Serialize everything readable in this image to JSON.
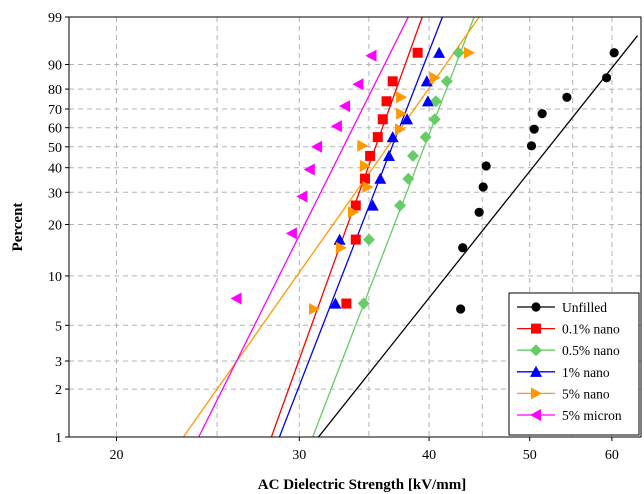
{
  "chart_data": {
    "type": "scatter",
    "title": "",
    "xlabel": "AC Dielectric Strength [kV/mm]",
    "ylabel": "Percent",
    "x_scale": "log",
    "y_scale": "weibull",
    "xlim": [
      18,
      64
    ],
    "ylim": [
      1,
      99
    ],
    "x_ticks": [
      20,
      30,
      40,
      50,
      60
    ],
    "y_ticks": [
      1,
      2,
      3,
      5,
      10,
      20,
      30,
      40,
      50,
      60,
      70,
      80,
      90,
      99
    ],
    "grid": true,
    "legend_position": "bottom-right",
    "series": [
      {
        "name": "Unfilled",
        "color": "#000000",
        "marker": "circle",
        "points": [
          [
            42.9,
            6.3
          ],
          [
            43.1,
            14.7
          ],
          [
            44.7,
            23.4
          ],
          [
            45.1,
            32.0
          ],
          [
            45.4,
            40.8
          ],
          [
            50.2,
            50.5
          ],
          [
            50.5,
            59.2
          ],
          [
            51.4,
            67.5
          ],
          [
            54.3,
            76.0
          ],
          [
            59.3,
            85.0
          ],
          [
            60.3,
            93.5
          ]
        ],
        "fit": [
          [
            31.3,
            1
          ],
          [
            63.5,
            97
          ]
        ]
      },
      {
        "name": "0.1% nano",
        "color": "#ff0000",
        "marker": "square",
        "points": [
          [
            33.3,
            6.8
          ],
          [
            34.0,
            16.4
          ],
          [
            34.0,
            25.5
          ],
          [
            34.7,
            35.3
          ],
          [
            35.1,
            45.5
          ],
          [
            35.7,
            55.0
          ],
          [
            36.1,
            64.5
          ],
          [
            36.4,
            74.0
          ],
          [
            36.9,
            83.5
          ],
          [
            39.0,
            93.5
          ]
        ],
        "fit": [
          [
            28.2,
            1
          ],
          [
            39.4,
            99
          ]
        ]
      },
      {
        "name": "0.5% nano",
        "color": "#66cc66",
        "marker": "diamond",
        "points": [
          [
            34.6,
            6.8
          ],
          [
            35.0,
            16.4
          ],
          [
            37.5,
            25.5
          ],
          [
            38.2,
            35.3
          ],
          [
            38.6,
            45.5
          ],
          [
            39.7,
            55.0
          ],
          [
            40.5,
            64.5
          ],
          [
            40.6,
            74.0
          ],
          [
            41.6,
            83.5
          ],
          [
            42.7,
            93.5
          ]
        ],
        "fit": [
          [
            30.9,
            1
          ],
          [
            44.2,
            99
          ]
        ]
      },
      {
        "name": "1% nano",
        "color": "#0000ff",
        "marker": "triangle-up",
        "points": [
          [
            32.5,
            6.8
          ],
          [
            32.8,
            16.4
          ],
          [
            35.3,
            25.5
          ],
          [
            35.9,
            35.3
          ],
          [
            36.6,
            45.5
          ],
          [
            36.9,
            55.0
          ],
          [
            38.1,
            64.5
          ],
          [
            39.9,
            74.0
          ],
          [
            39.8,
            83.5
          ],
          [
            40.9,
            93.5
          ]
        ],
        "fit": [
          [
            28.7,
            1
          ],
          [
            41.2,
            99
          ]
        ]
      },
      {
        "name": "5% nano",
        "color": "#ff9900",
        "marker": "triangle-right",
        "points": [
          [
            31.0,
            6.3
          ],
          [
            32.9,
            14.7
          ],
          [
            33.8,
            23.4
          ],
          [
            34.9,
            32.0
          ],
          [
            34.7,
            40.8
          ],
          [
            34.5,
            50.5
          ],
          [
            37.5,
            59.2
          ],
          [
            37.6,
            67.5
          ],
          [
            37.6,
            76.0
          ],
          [
            40.5,
            85.0
          ],
          [
            43.7,
            93.5
          ]
        ],
        "fit": [
          [
            23.2,
            1
          ],
          [
            44.7,
            99
          ]
        ]
      },
      {
        "name": "5% micron",
        "color": "#ff00ff",
        "marker": "triangle-left",
        "points": [
          [
            26.1,
            7.3
          ],
          [
            29.5,
            17.8
          ],
          [
            30.2,
            28.5
          ],
          [
            30.7,
            39.2
          ],
          [
            31.2,
            50.0
          ],
          [
            32.6,
            60.8
          ],
          [
            33.2,
            71.5
          ],
          [
            34.2,
            82.2
          ],
          [
            35.2,
            92.7
          ]
        ],
        "fit": [
          [
            24.0,
            1
          ],
          [
            38.2,
            99
          ]
        ]
      }
    ]
  }
}
